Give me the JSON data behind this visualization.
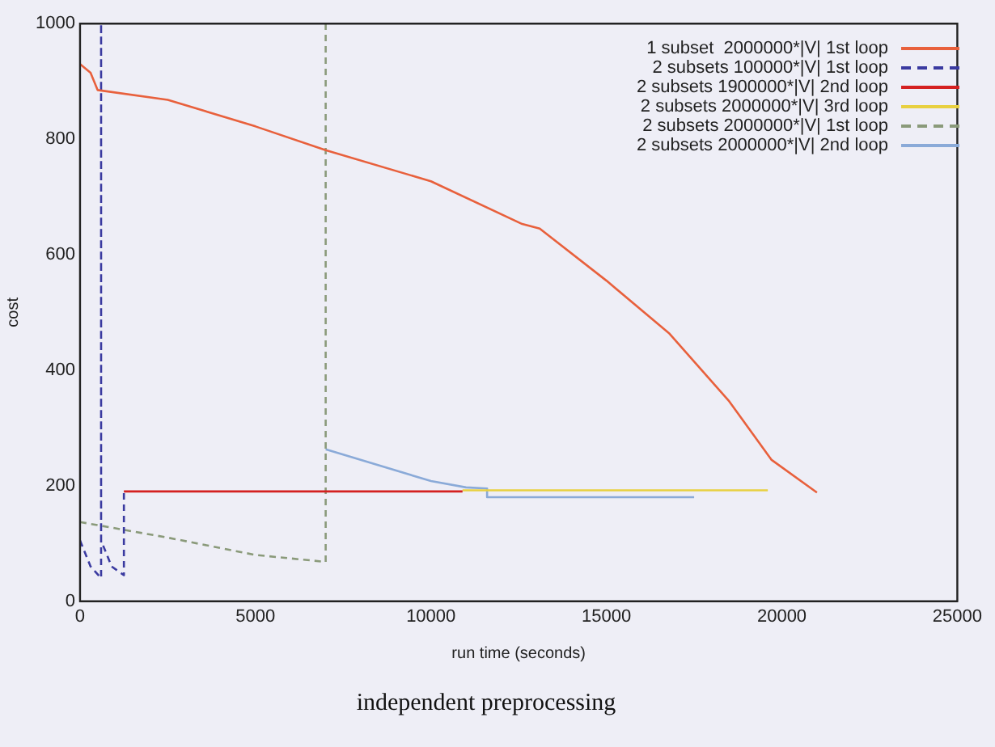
{
  "chart_data": {
    "type": "line",
    "title": "independent preprocessing",
    "xlabel": "run time (seconds)",
    "ylabel": "cost",
    "xlim": [
      0,
      25000
    ],
    "xticks": [
      0,
      5000,
      10000,
      15000,
      20000,
      25000
    ],
    "ylim": [
      0,
      1000
    ],
    "yticks": [
      0,
      200,
      400,
      600,
      800,
      1000
    ],
    "grid": false,
    "legend": "top right",
    "marker": "none",
    "series": [
      {
        "name": "1 subset  2000000*|V| 1st loop",
        "color": "#e8603c",
        "line_style": "solid",
        "x": [
          0,
          300,
          500,
          2500,
          5000,
          7000,
          10000,
          12600,
          13100,
          15000,
          16800,
          18500,
          19700,
          21000
        ],
        "values": [
          930,
          915,
          885,
          868,
          822,
          781,
          727,
          653,
          645,
          555,
          463,
          346,
          245,
          188
        ]
      },
      {
        "name": "2 subsets 100000*|V| 1st loop",
        "color": "#3a3aa0",
        "line_style": "dashed",
        "x": [
          0,
          300,
          600,
          600,
          600,
          900,
          1250,
          1250
        ],
        "values": [
          105,
          60,
          40,
          1000,
          105,
          60,
          45,
          190
        ]
      },
      {
        "name": "2 subsets 1900000*|V| 2nd loop",
        "color": "#d42020",
        "line_style": "solid",
        "x": [
          1250,
          10900
        ],
        "values": [
          190,
          190
        ]
      },
      {
        "name": "2 subsets 2000000*|V| 3rd loop",
        "color": "#e8d040",
        "line_style": "solid",
        "x": [
          10900,
          19600
        ],
        "values": [
          192,
          192
        ]
      },
      {
        "name": "2 subsets 2000000*|V| 1st loop",
        "color": "#8a9a7a",
        "line_style": "dashed",
        "x": [
          0,
          2500,
          5000,
          7000,
          7000
        ],
        "values": [
          137,
          110,
          80,
          68,
          1000
        ]
      },
      {
        "name": "2 subsets 2000000*|V| 2nd loop",
        "color": "#8aaad8",
        "line_style": "solid",
        "x": [
          7000,
          10000,
          11000,
          11600,
          11600,
          17500
        ],
        "values": [
          263,
          208,
          197,
          195,
          180,
          180
        ]
      }
    ]
  }
}
